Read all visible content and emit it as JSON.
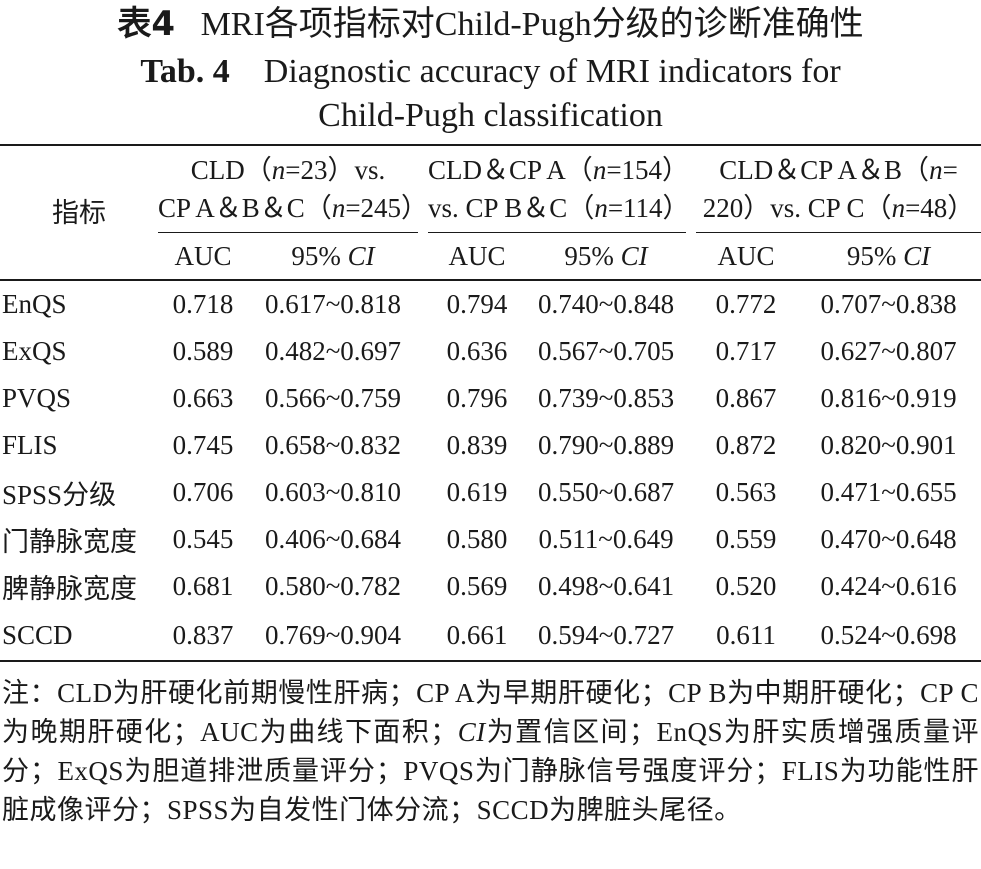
{
  "title_cn_prefix": "表4",
  "title_cn_text": "MRI各项指标对Child-Pugh分级的诊断准确性",
  "title_en_prefix": "Tab. 4",
  "title_en_line1": "Diagnostic accuracy of MRI indicators for",
  "title_en_line2": "Child-Pugh classification",
  "table": {
    "indicator_header": "指标",
    "groups": [
      {
        "line1": "CLD（n=23）vs.",
        "line2": "CP A＆B＆C（n=245）"
      },
      {
        "line1": "CLD＆CP A（n=154）",
        "line2": "vs. CP B＆C（n=114）"
      },
      {
        "line1": "CLD＆CP A＆B（n=",
        "line2": "220）vs. CP C（n=48）"
      }
    ],
    "auc_label": "AUC",
    "ci_label": "95% CI",
    "rows": [
      {
        "name": "EnQS",
        "values": [
          "0.718",
          "0.617~0.818",
          "0.794",
          "0.740~0.848",
          "0.772",
          "0.707~0.838"
        ]
      },
      {
        "name": "ExQS",
        "values": [
          "0.589",
          "0.482~0.697",
          "0.636",
          "0.567~0.705",
          "0.717",
          "0.627~0.807"
        ]
      },
      {
        "name": "PVQS",
        "values": [
          "0.663",
          "0.566~0.759",
          "0.796",
          "0.739~0.853",
          "0.867",
          "0.816~0.919"
        ]
      },
      {
        "name": "FLIS",
        "values": [
          "0.745",
          "0.658~0.832",
          "0.839",
          "0.790~0.889",
          "0.872",
          "0.820~0.901"
        ]
      },
      {
        "name": "SPSS分级",
        "values": [
          "0.706",
          "0.603~0.810",
          "0.619",
          "0.550~0.687",
          "0.563",
          "0.471~0.655"
        ]
      },
      {
        "name": "门静脉宽度",
        "values": [
          "0.545",
          "0.406~0.684",
          "0.580",
          "0.511~0.649",
          "0.559",
          "0.470~0.648"
        ]
      },
      {
        "name": "脾静脉宽度",
        "values": [
          "0.681",
          "0.580~0.782",
          "0.569",
          "0.498~0.641",
          "0.520",
          "0.424~0.616"
        ]
      },
      {
        "name": "SCCD",
        "values": [
          "0.837",
          "0.769~0.904",
          "0.661",
          "0.594~0.727",
          "0.611",
          "0.524~0.698"
        ]
      }
    ]
  },
  "note": "注：CLD为肝硬化前期慢性肝病；CP A为早期肝硬化；CP B为中期肝硬化；CP C为晚期肝硬化；AUC为曲线下面积；CI为置信区间；EnQS为肝实质增强质量评分；ExQS为胆道排泄质量评分；PVQS为门静脉信号强度评分；FLIS为功能性肝脏成像评分；SPSS为自发性门体分流；SCCD为脾脏头尾径。"
}
